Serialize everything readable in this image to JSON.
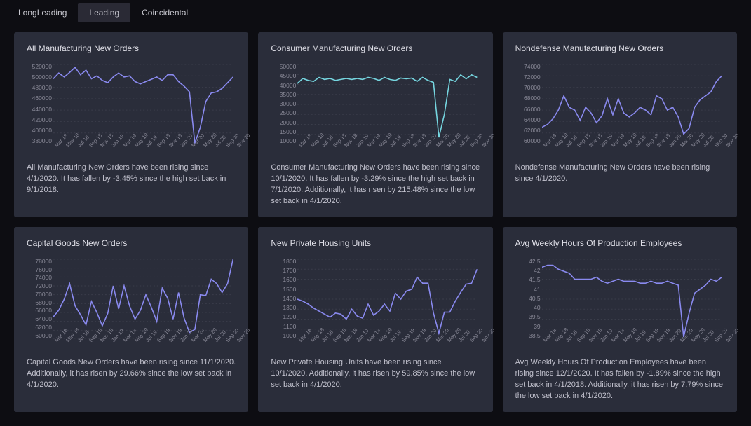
{
  "tabs": [
    {
      "label": "LongLeading",
      "active": false
    },
    {
      "label": "Leading",
      "active": true
    },
    {
      "label": "Coincidental",
      "active": false
    }
  ],
  "xLabels": [
    "Mar 18",
    "May 18",
    "Jul 18",
    "Sep 18",
    "Nov 18",
    "Jan 19",
    "Mar 19",
    "May 19",
    "Jul 19",
    "Sep 19",
    "Nov 19",
    "Jan 20",
    "Mar 20",
    "May 20",
    "Jul 20",
    "Sep 20",
    "Nov 20"
  ],
  "charts": [
    {
      "title": "All Manufacturing New Orders",
      "color": "#8a8af0",
      "ylim": [
        380000,
        520000
      ],
      "ystep": 20000,
      "values": [
        495000,
        505000,
        498000,
        506000,
        515000,
        502000,
        510000,
        495000,
        500000,
        492000,
        488000,
        498000,
        505000,
        498000,
        500000,
        490000,
        486000,
        490000,
        494000,
        498000,
        492000,
        502000,
        502000,
        490000,
        482000,
        472000,
        382000,
        410000,
        455000,
        470000,
        472000,
        478000,
        488000,
        498000
      ],
      "desc": "All Manufacturing New Orders have been rising since 4/1/2020. It has fallen by -3.45% since the high set back in 9/1/2018."
    },
    {
      "title": "Consumer Manufacturing New Orders",
      "color": "#76d6e0",
      "ylim": [
        10000,
        50000
      ],
      "ystep": 5000,
      "values": [
        40500,
        43000,
        42000,
        41500,
        43500,
        42500,
        43000,
        42000,
        42500,
        43000,
        42500,
        43000,
        42500,
        43500,
        43000,
        42000,
        43500,
        42500,
        42000,
        43200,
        42800,
        43200,
        41500,
        43500,
        42000,
        41000,
        13500,
        25000,
        42500,
        41500,
        44800,
        42800,
        44800,
        43500
      ],
      "desc": "Consumer Manufacturing New Orders have been rising since 10/1/2020. It has fallen by -3.29% since the high set back in 7/1/2020. Additionally, it has risen by 215.48% since the low set back in 4/1/2020."
    },
    {
      "title": "Nondefense Manufacturing New Orders",
      "color": "#8a8af0",
      "ylim": [
        60000,
        74000
      ],
      "ystep": 2000,
      "values": [
        63000,
        63500,
        64500,
        66000,
        68500,
        66500,
        66000,
        64200,
        66500,
        65500,
        63800,
        65000,
        68000,
        65200,
        68000,
        65500,
        64800,
        65500,
        66500,
        66000,
        65200,
        68500,
        68000,
        66000,
        66500,
        64800,
        61800,
        62800,
        66500,
        67800,
        68500,
        69200,
        71000,
        72000
      ],
      "desc": "Nondefense Manufacturing New Orders have been rising since 4/1/2020."
    },
    {
      "title": "Capital Goods New Orders",
      "color": "#8a8af0",
      "ylim": [
        60000,
        78000
      ],
      "ystep": 2000,
      "values": [
        65000,
        66500,
        69000,
        72500,
        67500,
        65500,
        63200,
        68500,
        66000,
        63000,
        65800,
        72000,
        66800,
        72000,
        67500,
        64500,
        66500,
        70000,
        67200,
        64000,
        71500,
        69200,
        64500,
        70500,
        64800,
        61500,
        62200,
        70000,
        69800,
        73500,
        72500,
        70500,
        72500,
        78000
      ],
      "desc": "Capital Goods New Orders have been rising since 11/1/2020. Additionally, it has risen by 29.66% since the low set back in 4/1/2020."
    },
    {
      "title": "New Private Housing Units",
      "color": "#8a8af0",
      "ylim": [
        1000,
        1800
      ],
      "ystep": 100,
      "values": [
        1400,
        1380,
        1350,
        1310,
        1280,
        1250,
        1220,
        1260,
        1250,
        1200,
        1300,
        1230,
        1210,
        1350,
        1240,
        1280,
        1350,
        1280,
        1460,
        1400,
        1480,
        1500,
        1620,
        1560,
        1560,
        1260,
        1060,
        1270,
        1270,
        1380,
        1470,
        1550,
        1560,
        1700
      ],
      "desc": "New Private Housing Units have been rising since 10/1/2020. Additionally, it has risen by 59.85% since the low set back in 4/1/2020."
    },
    {
      "title": "Avg Weekly Hours Of Production Employees",
      "color": "#8a8af0",
      "ylim": [
        38.5,
        42.5
      ],
      "ystep": 0.5,
      "values": [
        42.1,
        42.2,
        42.2,
        42.0,
        41.9,
        41.8,
        41.5,
        41.5,
        41.5,
        41.5,
        41.6,
        41.4,
        41.3,
        41.4,
        41.5,
        41.4,
        41.4,
        41.4,
        41.3,
        41.3,
        41.4,
        41.3,
        41.3,
        41.4,
        41.3,
        41.2,
        38.6,
        39.8,
        40.8,
        41.0,
        41.2,
        41.5,
        41.4,
        41.6
      ],
      "desc": "Avg Weekly Hours Of Production Employees have been rising since 12/1/2020. It has fallen by -1.89% since the high set back in 4/1/2018. Additionally, it has risen by 7.79% since the low set back in 4/1/2020."
    }
  ]
}
